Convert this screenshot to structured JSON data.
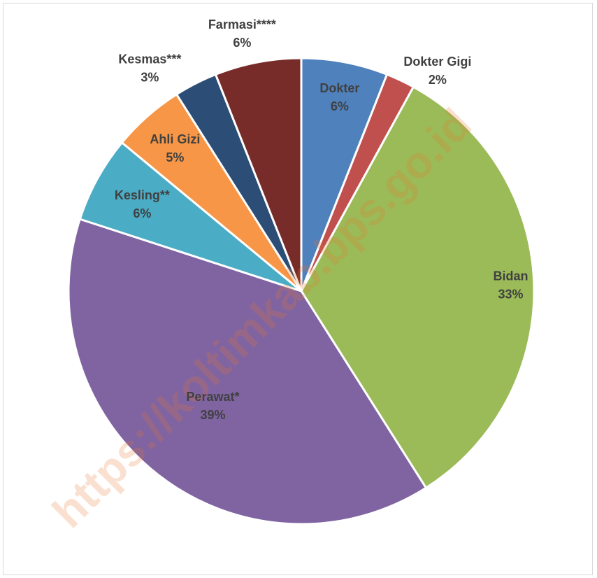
{
  "watermark": "https://koltimkab.bps.go.id",
  "chart_data": {
    "type": "pie",
    "title": "",
    "categories": [
      "Dokter",
      "Dokter Gigi",
      "Bidan",
      "Perawat*",
      "Kesling**",
      "Ahli Gizi",
      "Kesmas***",
      "Farmasi****"
    ],
    "values": [
      6,
      2,
      33,
      39,
      6,
      5,
      3,
      6
    ],
    "labels": [
      "6%",
      "2%",
      "33%",
      "39%",
      "6%",
      "5%",
      "3%",
      "6%"
    ],
    "colors": [
      "#4f81bd",
      "#c0504d",
      "#9bbb59",
      "#8064a2",
      "#4bacc6",
      "#f79646",
      "#2c4d75",
      "#772c2a"
    ],
    "start_angle_deg": 0,
    "direction": "clockwise",
    "data_labels": "category-and-percent"
  }
}
